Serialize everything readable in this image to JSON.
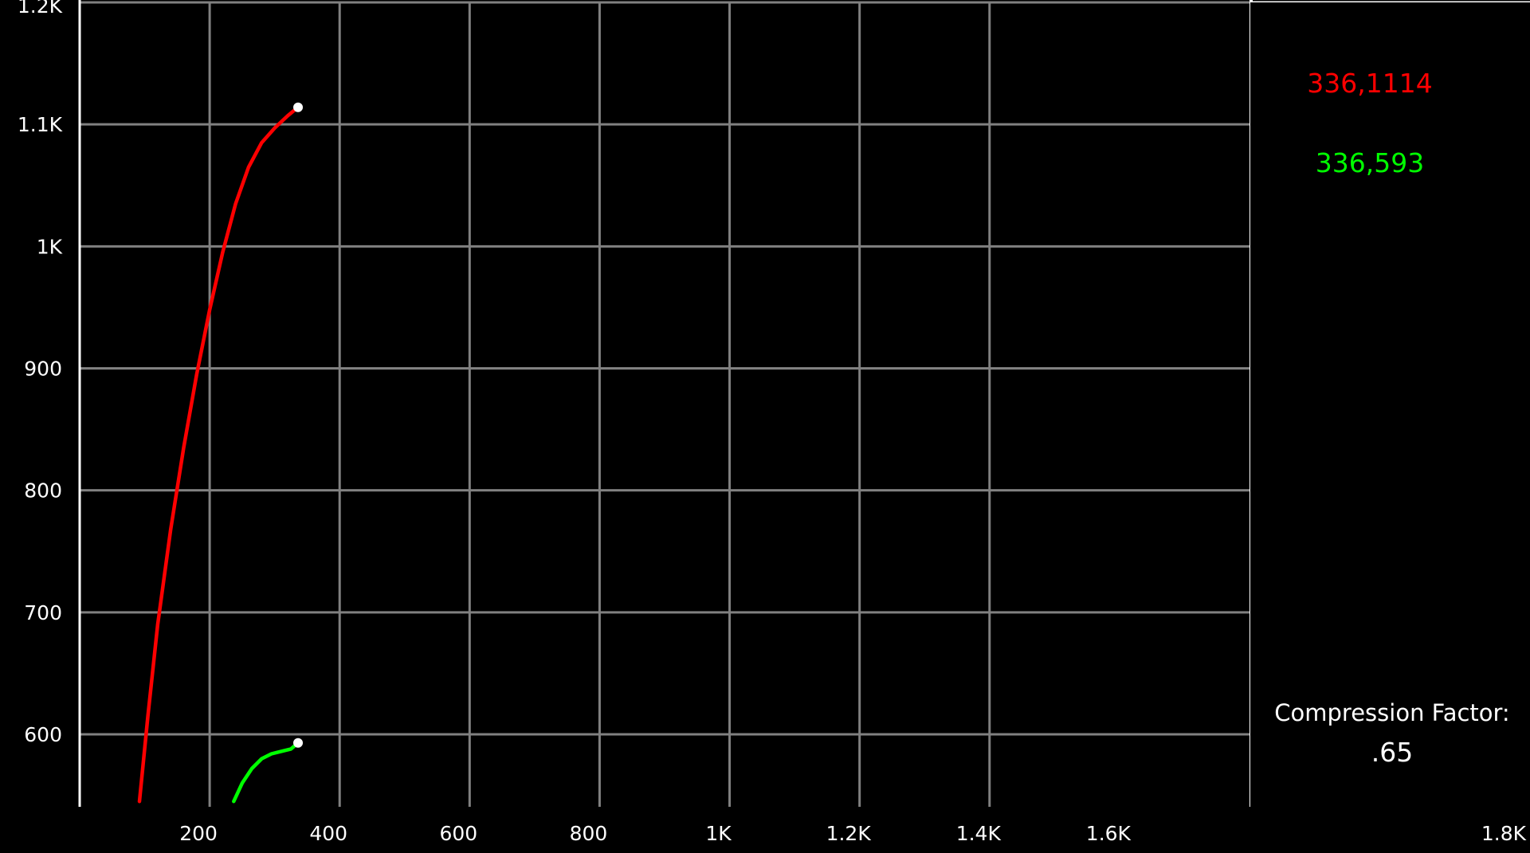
{
  "chart_data": {
    "type": "line",
    "title": "",
    "xlabel": "",
    "ylabel": "",
    "xlim": [
      0,
      1800
    ],
    "ylim": [
      545,
      1200
    ],
    "grid": true,
    "x_ticks": [
      {
        "value": 200,
        "label": "200"
      },
      {
        "value": 400,
        "label": "400"
      },
      {
        "value": 600,
        "label": "600"
      },
      {
        "value": 800,
        "label": "800"
      },
      {
        "value": 1000,
        "label": "1K"
      },
      {
        "value": 1200,
        "label": "1.2K"
      },
      {
        "value": 1400,
        "label": "1.4K"
      },
      {
        "value": 1600,
        "label": "1.6K"
      },
      {
        "value": 1800,
        "label": "1.8K"
      }
    ],
    "y_ticks": [
      {
        "value": 600,
        "label": "600"
      },
      {
        "value": 700,
        "label": "700"
      },
      {
        "value": 800,
        "label": "800"
      },
      {
        "value": 900,
        "label": "900"
      },
      {
        "value": 1000,
        "label": "1K"
      },
      {
        "value": 1100,
        "label": "1.1K"
      },
      {
        "value": 1200,
        "label": "1.2K"
      }
    ],
    "series": [
      {
        "color": "#ff0000",
        "x": [
          92,
          105,
          120,
          140,
          160,
          180,
          200,
          220,
          240,
          260,
          280,
          300,
          320,
          336
        ],
        "y": [
          545,
          615,
          690,
          768,
          835,
          895,
          948,
          995,
          1035,
          1065,
          1085,
          1097,
          1107,
          1114
        ]
      },
      {
        "color": "#00ff00",
        "x": [
          237,
          250,
          265,
          280,
          295,
          310,
          325,
          336
        ],
        "y": [
          545,
          560,
          572,
          580,
          584,
          586,
          588,
          593
        ]
      }
    ],
    "endpoints": [
      {
        "x": 336,
        "y": 1114,
        "color": "#ffffff"
      },
      {
        "x": 336,
        "y": 593,
        "color": "#ffffff"
      }
    ]
  },
  "readouts": {
    "red": {
      "text": "336,1114",
      "color": "#ff0000"
    },
    "green": {
      "text": "336,593",
      "color": "#00ff00"
    }
  },
  "compression": {
    "label": "Compression Factor:",
    "value": ".65"
  },
  "colors": {
    "background": "#000000",
    "grid": "#808080",
    "axis": "#ffffff",
    "text": "#ffffff"
  }
}
